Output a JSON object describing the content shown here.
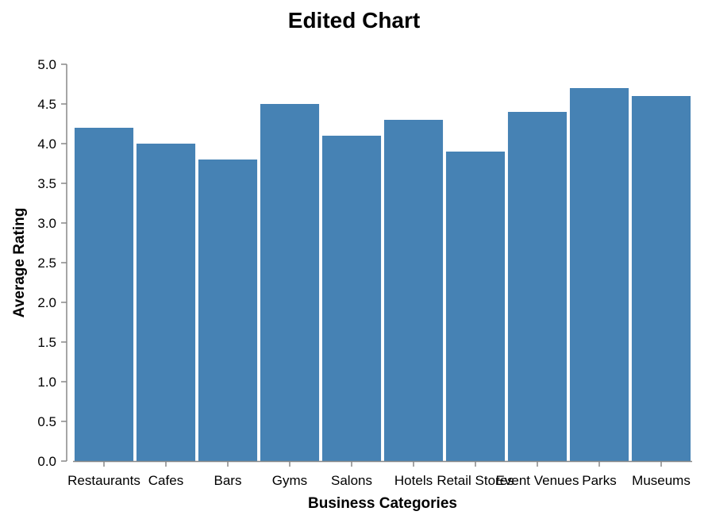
{
  "chart_data": {
    "type": "bar",
    "title": "Edited Chart",
    "xlabel": "Business Categories",
    "ylabel": "Average Rating",
    "categories": [
      "Restaurants",
      "Cafes",
      "Bars",
      "Gyms",
      "Salons",
      "Hotels",
      "Retail Stores",
      "Event Venues",
      "Parks",
      "Museums"
    ],
    "values": [
      4.2,
      4.0,
      3.8,
      4.5,
      4.1,
      4.3,
      3.9,
      4.4,
      4.7,
      4.6
    ],
    "ylim": [
      0,
      5
    ],
    "yticks": [
      "0.0",
      "0.5",
      "1.0",
      "1.5",
      "2.0",
      "2.5",
      "3.0",
      "3.5",
      "4.0",
      "4.5",
      "5.0"
    ],
    "bar_color": "#4682b4",
    "grid": false,
    "legend": "none"
  }
}
